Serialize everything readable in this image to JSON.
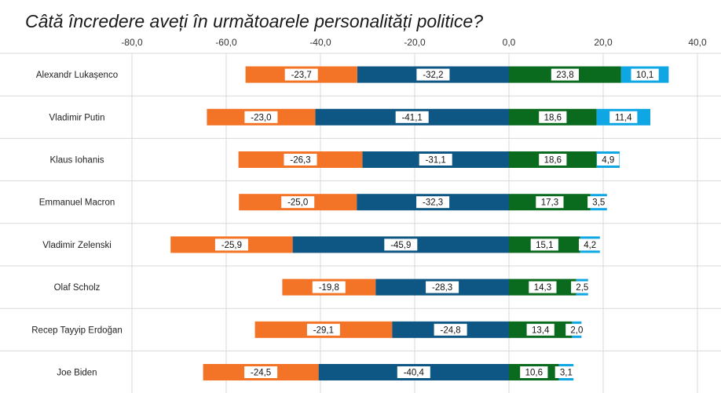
{
  "title": "Câtă încredere aveți în următoarele personalități politice?",
  "colors": {
    "neg_outer": "#F47427",
    "neg_inner": "#0E5784",
    "pos_inner": "#0A6B1F",
    "pos_outer": "#0FA6E4",
    "grid": "#D9D9D9",
    "axis_text": "#333333",
    "label_box": "#ffffff"
  },
  "chart_data": {
    "type": "bar",
    "orientation": "horizontal",
    "stacked": "diverging",
    "title": "Câtă încredere aveți în următoarele personalități politice?",
    "xlim": [
      -80,
      40
    ],
    "xticks": [
      -80,
      -60,
      -40,
      -20,
      0,
      20,
      40
    ],
    "xtick_labels": [
      "-80,0",
      "-60,0",
      "-40,0",
      "-20,0",
      "0,0",
      "20,0",
      "40,0"
    ],
    "xaxis_position": "top",
    "grid": true,
    "legend": "none",
    "categories": [
      "Alexandr Lukașenco",
      "Vladimir Putin",
      "Klaus Iohanis",
      "Emmanuel Macron",
      "Vladimir Zelenski",
      "Olaf Scholz",
      "Recep Tayyip Erdoğan",
      "Joe Biden"
    ],
    "series": [
      {
        "values": [
          -32.2,
          -41.1,
          -31.1,
          -32.3,
          -45.9,
          -28.3,
          -24.8,
          -40.4
        ],
        "labels": [
          "-32,2",
          "-41,1",
          "-31,1",
          "-32,3",
          "-45,9",
          "-28,3",
          "-24,8",
          "-40,4"
        ],
        "color_key": "neg_inner",
        "side": "negative",
        "stack_order": 1
      },
      {
        "values": [
          -23.7,
          -23.0,
          -26.3,
          -25.0,
          -25.9,
          -19.8,
          -29.1,
          -24.5
        ],
        "labels": [
          "-23,7",
          "-23,0",
          "-26,3",
          "-25,0",
          "-25,9",
          "-19,8",
          "-29,1",
          "-24,5"
        ],
        "color_key": "neg_outer",
        "side": "negative",
        "stack_order": 2
      },
      {
        "values": [
          23.8,
          18.6,
          18.6,
          17.3,
          15.1,
          14.3,
          13.4,
          10.6
        ],
        "labels": [
          "23,8",
          "18,6",
          "18,6",
          "17,3",
          "15,1",
          "14,3",
          "13,4",
          "10,6"
        ],
        "color_key": "pos_inner",
        "side": "positive",
        "stack_order": 1
      },
      {
        "values": [
          10.1,
          11.4,
          4.9,
          3.5,
          4.2,
          2.5,
          2.0,
          3.1
        ],
        "labels": [
          "10,1",
          "11,4",
          "4,9",
          "3,5",
          "4,2",
          "2,5",
          "2,0",
          "3,1"
        ],
        "color_key": "pos_outer",
        "side": "positive",
        "stack_order": 2
      }
    ]
  }
}
